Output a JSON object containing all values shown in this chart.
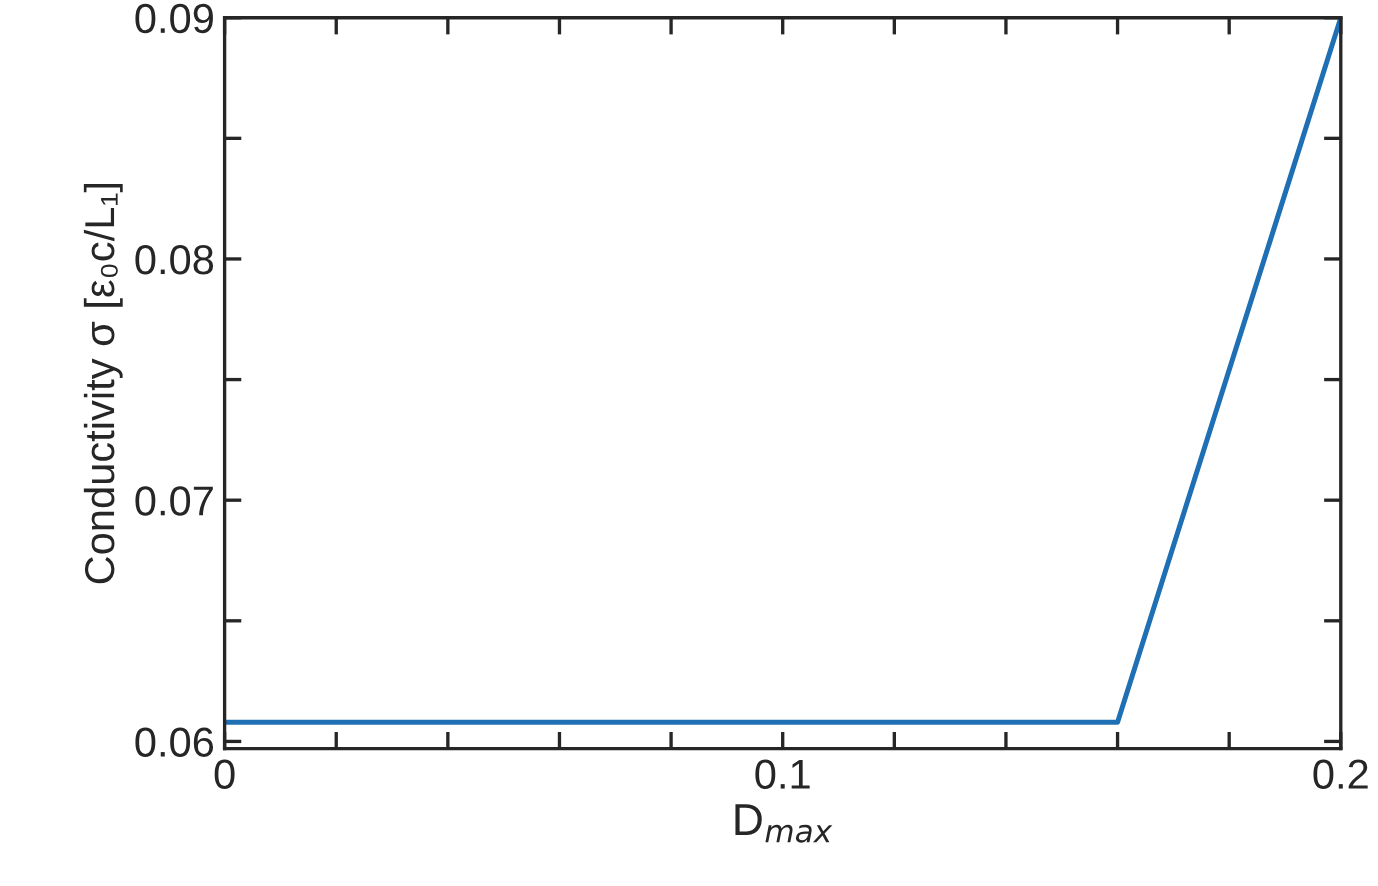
{
  "chart_data": {
    "type": "line",
    "xlabel": "D$_{max}$",
    "ylabel": "Conductivity σ [ε₀c/L₁]",
    "x": [
      0,
      0.16,
      0.2
    ],
    "series": [
      {
        "color": "#1f6fb4",
        "values": [
          0.0608,
          0.0608,
          0.09
        ]
      }
    ],
    "xlim": [
      0,
      0.2
    ],
    "ylim": [
      0.0597,
      0.09
    ],
    "xticks": [
      0,
      {
        "value": 0.02,
        "label": null
      },
      {
        "value": 0.04,
        "label": null
      },
      {
        "value": 0.06,
        "label": null
      },
      {
        "value": 0.08,
        "label": null
      },
      0.1,
      {
        "value": 0.12,
        "label": null
      },
      {
        "value": 0.14,
        "label": null
      },
      {
        "value": 0.16,
        "label": null
      },
      {
        "value": 0.18,
        "label": null
      },
      0.2
    ],
    "yticks": [
      0.06,
      {
        "value": 0.065,
        "label": null
      },
      0.07,
      {
        "value": 0.075,
        "label": null
      },
      0.08,
      {
        "value": 0.085,
        "label": null
      },
      0.09
    ],
    "grid": false,
    "marker": "none",
    "line_style": "solid"
  }
}
